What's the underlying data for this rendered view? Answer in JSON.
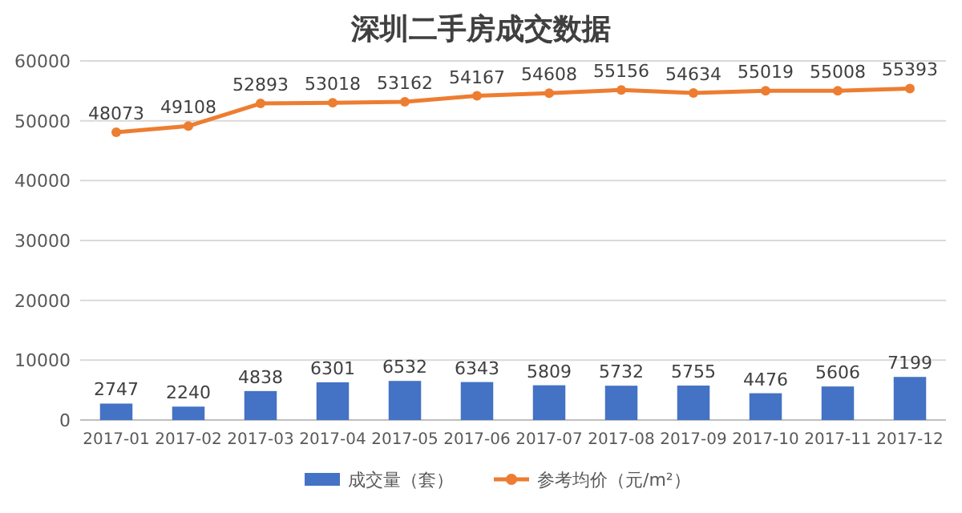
{
  "chart_data": {
    "type": "bar",
    "title": "深圳二手房成交数据",
    "categories": [
      "2017-01",
      "2017-02",
      "2017-03",
      "2017-04",
      "2017-05",
      "2017-06",
      "2017-07",
      "2017-08",
      "2017-09",
      "2017-10",
      "2017-11",
      "2017-12"
    ],
    "series": [
      {
        "name": "成交量（套）",
        "color": "#4472c4",
        "values": [
          2747,
          2240,
          4838,
          6301,
          6532,
          6343,
          5809,
          5732,
          5755,
          4476,
          5606,
          7199
        ]
      },
      {
        "name": "参考均价（元/m²）",
        "type": "line",
        "color": "#ed7d31",
        "values": [
          48073,
          49108,
          52893,
          53018,
          53162,
          54167,
          54608,
          55156,
          54634,
          55019,
          55008,
          55393
        ]
      }
    ],
    "ylim": [
      0,
      60000
    ],
    "yticks": [
      0,
      10000,
      20000,
      30000,
      40000,
      50000,
      60000
    ],
    "grid": "y",
    "legend": "bottom",
    "data_labels": true,
    "marker": "circle",
    "line_style": "solid"
  }
}
